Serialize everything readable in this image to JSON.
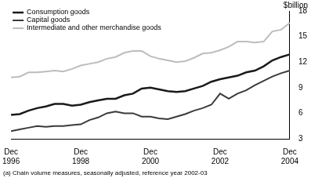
{
  "chart_data": {
    "type": "line",
    "y_label": "$billion",
    "footnote": "(a) Chain volume measures, seasonally adjusted, reference year 2002-03",
    "categories": [
      "Dec 1996",
      null,
      null,
      null,
      null,
      null,
      null,
      null,
      "Dec 1998",
      null,
      null,
      null,
      null,
      null,
      null,
      null,
      "Dec 2000",
      null,
      null,
      null,
      null,
      null,
      null,
      null,
      "Dec 2002",
      null,
      null,
      null,
      null,
      null,
      null,
      null,
      "Dec 2004"
    ],
    "series": [
      {
        "name": "Consumption goods",
        "color": "#1a1a1a",
        "values": [
          5.8,
          5.9,
          6.3,
          6.6,
          6.8,
          7.1,
          7.1,
          6.9,
          7.0,
          7.3,
          7.5,
          7.7,
          7.7,
          8.1,
          8.3,
          8.9,
          9.0,
          8.8,
          8.6,
          8.5,
          8.6,
          8.9,
          9.2,
          9.7,
          10.0,
          10.2,
          10.4,
          10.8,
          11.0,
          11.5,
          12.2,
          12.6,
          12.9
        ]
      },
      {
        "name": "Capital goods",
        "color": "#3a3a3a",
        "values": [
          3.9,
          4.1,
          4.3,
          4.5,
          4.4,
          4.5,
          4.5,
          4.6,
          4.7,
          5.2,
          5.5,
          6.0,
          6.2,
          6.0,
          6.0,
          5.6,
          5.6,
          5.4,
          5.3,
          5.6,
          5.9,
          6.3,
          6.6,
          7.0,
          8.3,
          7.7,
          8.3,
          8.7,
          9.3,
          9.8,
          10.3,
          10.7,
          11.0
        ]
      },
      {
        "name": "Intermediate and other merchandise goods",
        "color": "#bdbdbd",
        "values": [
          10.2,
          10.3,
          10.8,
          10.8,
          10.9,
          11.0,
          10.9,
          11.2,
          11.6,
          11.8,
          12.0,
          12.4,
          12.6,
          13.1,
          13.3,
          13.3,
          12.7,
          12.4,
          12.2,
          12.0,
          12.1,
          12.5,
          13.0,
          13.1,
          13.4,
          13.8,
          14.4,
          14.4,
          14.3,
          14.4,
          15.6,
          15.8,
          16.6
        ]
      }
    ],
    "ylim": [
      3,
      18
    ],
    "yticks": [
      3,
      6,
      9,
      12,
      15,
      18
    ],
    "grid": false,
    "legend": "upper left"
  }
}
